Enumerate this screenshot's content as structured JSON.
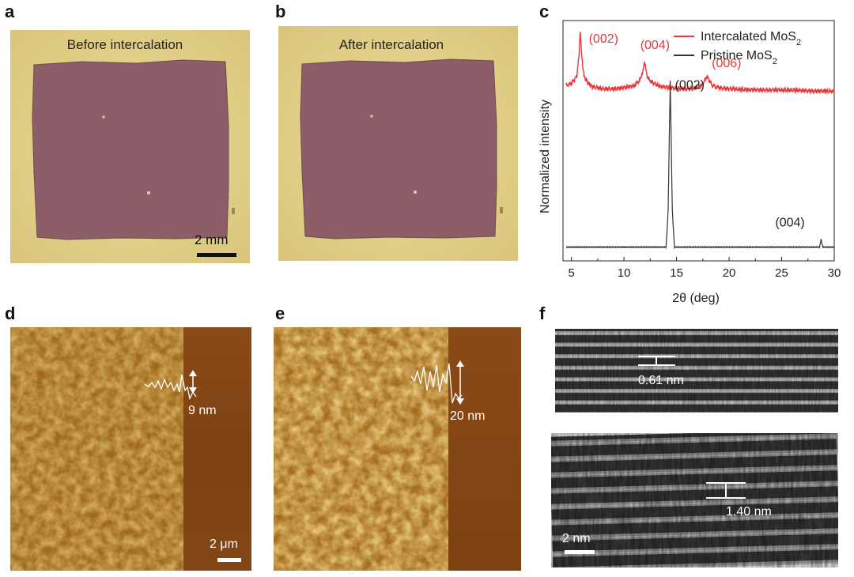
{
  "panels": {
    "a": {
      "label": "a",
      "caption": "Before intercalation",
      "scale": "2 mm"
    },
    "b": {
      "label": "b",
      "caption": "After intercalation"
    },
    "c": {
      "label": "c"
    },
    "d": {
      "label": "d",
      "height": "9 nm",
      "scale": "2 μm"
    },
    "e": {
      "label": "e",
      "height": "20 nm"
    },
    "f": {
      "label": "f",
      "spacing_top": "0.61 nm",
      "spacing_bottom": "1.40 nm",
      "scale": "2 nm"
    }
  },
  "colors": {
    "intercalated": "#e8383d",
    "pristine": "#333333",
    "substrate": "#e6d48e",
    "film": "#8e5f68",
    "afm_bright": "#d9a646",
    "afm_dark": "#7a3f10"
  },
  "chart_data": {
    "type": "line",
    "xlabel": "2θ (deg)",
    "ylabel": "Normalized intensity",
    "xlim": [
      4.2,
      30
    ],
    "xticks": [
      "5",
      "10",
      "15",
      "20",
      "25",
      "30"
    ],
    "grid": false,
    "legend_position": "top-right",
    "series": [
      {
        "name": "Intercalated MoS2",
        "color": "#e8383d",
        "x": [
          4.5,
          5.0,
          5.5,
          5.7,
          5.85,
          6.0,
          6.2,
          6.6,
          7.0,
          8.0,
          9.0,
          10.0,
          11.0,
          11.6,
          11.95,
          12.3,
          12.8,
          13.5,
          14.5,
          15.5,
          16.5,
          17.4,
          17.9,
          18.4,
          19.0,
          20.0,
          22.0,
          24.0,
          26.0,
          28.0,
          30.0
        ],
        "y": [
          0.76,
          0.77,
          0.8,
          0.88,
          1.0,
          0.88,
          0.8,
          0.77,
          0.755,
          0.745,
          0.745,
          0.75,
          0.76,
          0.79,
          0.86,
          0.79,
          0.77,
          0.755,
          0.75,
          0.745,
          0.745,
          0.76,
          0.8,
          0.76,
          0.75,
          0.745,
          0.74,
          0.74,
          0.74,
          0.735,
          0.735
        ],
        "annotations": [
          {
            "x": 5.9,
            "text": "(002)"
          },
          {
            "x": 12.0,
            "text": "(004)"
          },
          {
            "x": 17.9,
            "text": "(006)"
          }
        ]
      },
      {
        "name": "Pristine MoS2",
        "color": "#333333",
        "x": [
          4.5,
          10.0,
          14.0,
          14.2,
          14.4,
          14.6,
          14.8,
          20.0,
          28.6,
          28.75,
          28.9,
          30.0
        ],
        "y": [
          0.04,
          0.04,
          0.04,
          0.2,
          0.78,
          0.2,
          0.04,
          0.04,
          0.04,
          0.075,
          0.04,
          0.04
        ],
        "annotations": [
          {
            "x": 14.4,
            "text": "(002)"
          },
          {
            "x": 28.75,
            "text": "(004)"
          }
        ]
      }
    ]
  }
}
